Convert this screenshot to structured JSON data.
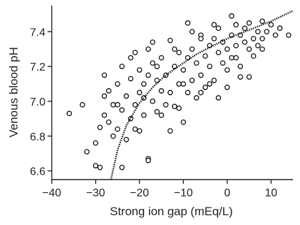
{
  "chart_data": {
    "type": "scatter",
    "title": "",
    "xlabel": "Strong ion gap (mEq/L)",
    "ylabel": "Venous blood pH",
    "xlim": [
      -40,
      15
    ],
    "ylim": [
      6.55,
      7.55
    ],
    "x_ticks": [
      -40,
      -30,
      -20,
      -10,
      0,
      10
    ],
    "x_tick_labels": [
      "−40",
      "−30",
      "−20",
      "−10",
      "0",
      "10"
    ],
    "y_ticks": [
      6.6,
      6.8,
      7.0,
      7.2,
      7.4
    ],
    "y_tick_labels": [
      "6.6",
      "6.8",
      "7.0",
      "7.2",
      "7.4"
    ],
    "grid": false,
    "legend": "none",
    "colors": {
      "axis": "#222222",
      "marker_edge": "#111111",
      "marker_fill": "#ffffff",
      "curve": "#111111"
    },
    "fit_curve": {
      "style": "dotted",
      "x": [
        -26.5,
        -25,
        -23,
        -20,
        -17,
        -14,
        -10,
        -7,
        -4,
        0,
        4,
        7,
        10,
        15
      ],
      "y": [
        6.55,
        6.72,
        6.86,
        6.99,
        7.08,
        7.15,
        7.22,
        7.27,
        7.31,
        7.36,
        7.4,
        7.43,
        7.46,
        7.52
      ]
    },
    "points": {
      "x": [
        -36,
        -33,
        -32,
        -30,
        -30,
        -29,
        -29,
        -28,
        -28,
        -28,
        -27,
        -27,
        -26,
        -25,
        -25,
        -24,
        -24,
        -24,
        -23,
        -23,
        -22,
        -22,
        -22,
        -21,
        -21,
        -20,
        -20,
        -20,
        -19,
        -19,
        -18,
        -18,
        -18,
        -17,
        -17,
        -16,
        -16,
        -15,
        -15,
        -14,
        -14,
        -13,
        -13,
        -12,
        -12,
        -11,
        -11,
        -10,
        -10,
        -9,
        -9,
        -8,
        -8,
        -7,
        -7,
        -6,
        -6,
        -5,
        -5,
        -4,
        -4,
        -3,
        -3,
        -2,
        -2,
        -1,
        -1,
        0,
        0,
        1,
        1,
        2,
        2,
        3,
        3,
        4,
        4,
        5,
        5,
        6,
        6,
        7,
        7,
        8,
        8,
        9,
        10,
        11,
        12,
        14,
        -26,
        -19,
        -18,
        -13,
        -25,
        -12,
        -9,
        -6,
        -4,
        -2,
        1,
        5,
        8,
        -21,
        -17,
        -15,
        -11,
        -8,
        -3,
        0,
        3,
        -16,
        -10,
        -6,
        2
      ],
      "y": [
        6.93,
        6.98,
        6.71,
        6.76,
        6.63,
        6.62,
        6.85,
        7.03,
        6.92,
        7.15,
        6.88,
        7.06,
        6.98,
        7.1,
        6.84,
        6.95,
        7.2,
        6.62,
        7.03,
        6.78,
        7.13,
        6.9,
        7.25,
        6.98,
        7.28,
        7.05,
        6.83,
        7.18,
        7.1,
        6.92,
        6.67,
        7.15,
        7.3,
        7.0,
        7.22,
        6.94,
        7.12,
        7.06,
        7.25,
        6.98,
        7.15,
        7.35,
        7.05,
        7.2,
        6.97,
        7.1,
        7.28,
        6.88,
        7.18,
        7.25,
        7.05,
        7.3,
        7.12,
        7.02,
        7.22,
        7.38,
        7.15,
        7.26,
        7.08,
        7.32,
        7.2,
        7.36,
        7.12,
        7.28,
        7.42,
        7.22,
        7.34,
        7.3,
        7.18,
        7.38,
        7.25,
        7.44,
        7.32,
        7.38,
        7.2,
        7.34,
        7.42,
        7.3,
        7.45,
        7.36,
        7.26,
        7.4,
        7.32,
        7.46,
        7.36,
        7.4,
        7.44,
        7.38,
        7.42,
        7.38,
        6.8,
        7.02,
        6.66,
        6.83,
        6.98,
        7.3,
        7.45,
        7.05,
        7.1,
        7.02,
        7.49,
        7.14,
        7.3,
        6.84,
        7.34,
        6.92,
        6.96,
        7.4,
        7.44,
        7.08,
        7.14,
        7.2,
        7.1,
        7.36,
        7.25
      ]
    }
  }
}
